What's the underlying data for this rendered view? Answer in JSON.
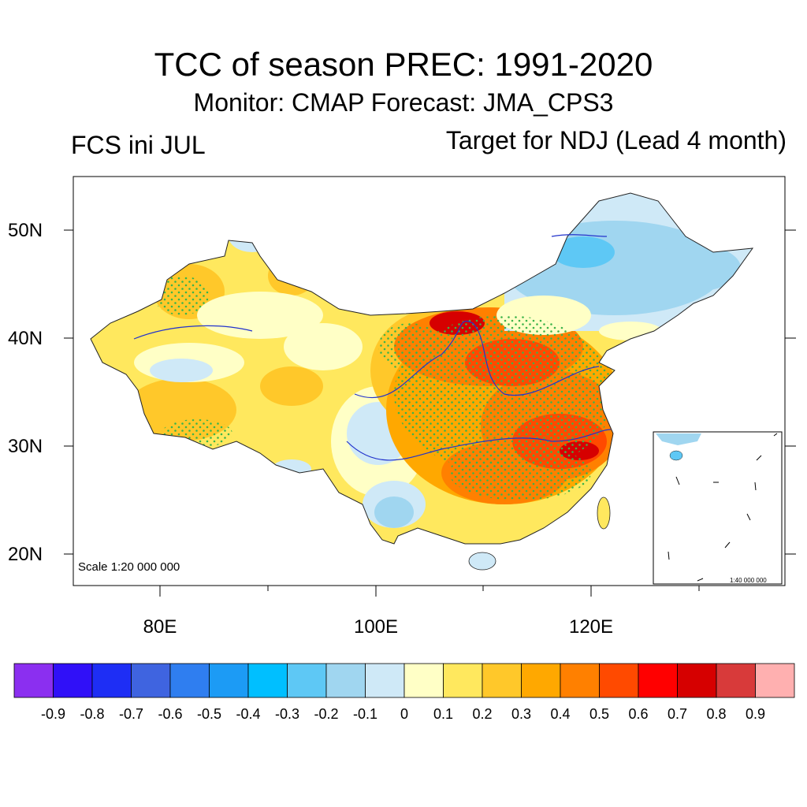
{
  "title": "TCC of season PREC: 1991-2020",
  "subtitle": "Monitor: CMAP   Forecast: JMA_CPS3",
  "left_label": "FCS ini JUL",
  "right_label": "Target for NDJ (Lead 4 month)",
  "scale_main": "Scale 1:20 000 000",
  "scale_inset": "1:40 000 000",
  "lat_labels": [
    "50N",
    "40N",
    "30N",
    "20N"
  ],
  "lon_labels": [
    "80E",
    "100E",
    "120E"
  ],
  "colorbar": {
    "colors": [
      "#8b2ff0",
      "#3010f8",
      "#1e2ef5",
      "#3f64e0",
      "#2f7ef0",
      "#1c9bf5",
      "#00bfff",
      "#5ec8f5",
      "#a0d6f0",
      "#cfe9f7",
      "#ffffc6",
      "#ffe85e",
      "#ffc82a",
      "#ffa800",
      "#ff8000",
      "#ff4a00",
      "#ff0000",
      "#d60000",
      "#d83a3a",
      "#ffb0b0"
    ],
    "labels": [
      "-0.9",
      "-0.8",
      "-0.7",
      "-0.6",
      "-0.5",
      "-0.4",
      "-0.3",
      "-0.2",
      "-0.1",
      "0",
      "0.1",
      "0.2",
      "0.3",
      "0.4",
      "0.5",
      "0.6",
      "0.7",
      "0.8",
      "0.9"
    ]
  }
}
